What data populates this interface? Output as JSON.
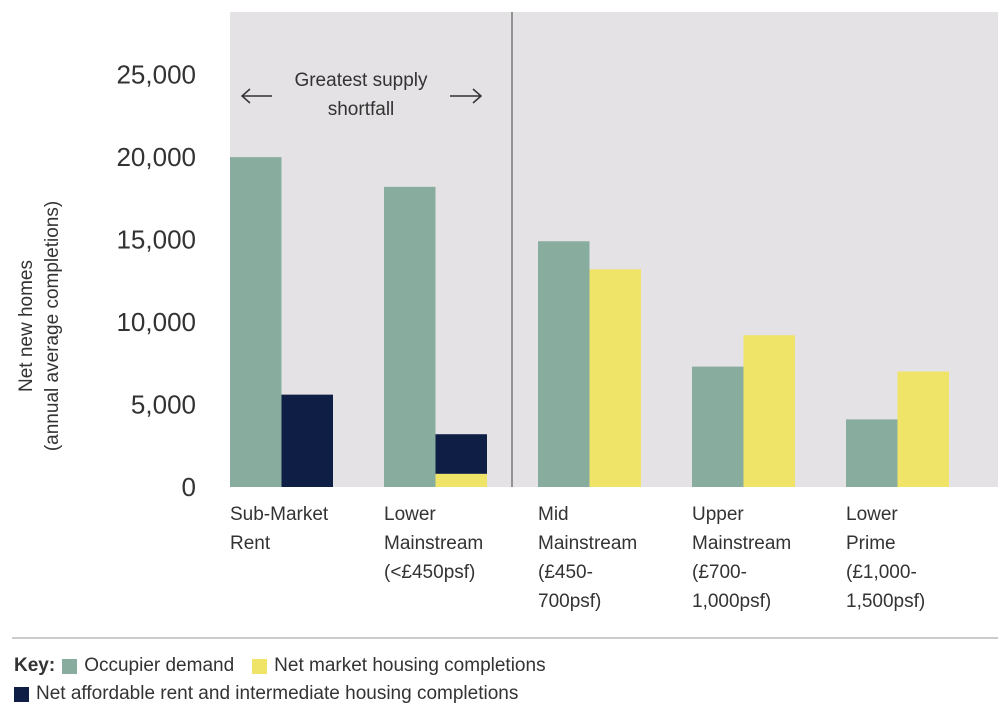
{
  "chart_data": {
    "type": "bar",
    "y_label": "Net new homes\n(annual average completions)",
    "annotation": "Greatest supply\nshortfall",
    "legend_title": "Key:",
    "categories": [
      "Sub-Market\nRent",
      "Lower\nMainstream\n(<£450psf)",
      "Mid\nMainstream\n(£450-\n700psf)",
      "Upper\nMainstream\n(£700-\n1,000psf)",
      "Lower\nPrime\n(£1,000-\n1,500psf)"
    ],
    "series": [
      {
        "name": "Occupier demand",
        "color": "#88ad9f",
        "values": [
          20000,
          18200,
          14900,
          7300,
          4100
        ]
      },
      {
        "name": "Net market housing completions",
        "color": "#f0e468",
        "values": [
          null,
          800,
          13200,
          9200,
          7000
        ]
      },
      {
        "name": "Net affordable rent and intermediate housing completions",
        "color": "#0e1e45",
        "values": [
          5600,
          2400,
          null,
          null,
          null
        ]
      }
    ],
    "ylim": [
      0,
      28800
    ],
    "yticks": [
      0,
      {
        "value": 5000,
        "label": "5,000"
      },
      {
        "value": 10000,
        "label": "10,000"
      },
      {
        "value": 15000,
        "label": "15,000"
      },
      {
        "value": 20000,
        "label": "20,000"
      },
      {
        "value": 25000,
        "label": "25,000"
      }
    ],
    "background": "#e4e2e4"
  }
}
